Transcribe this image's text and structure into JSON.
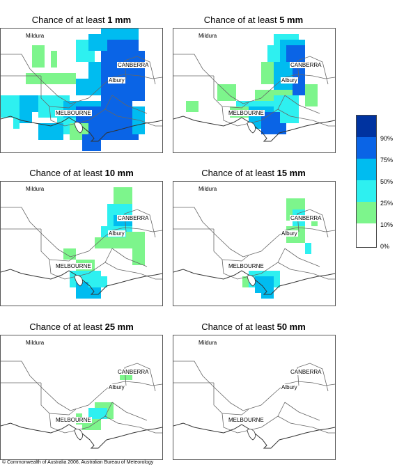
{
  "title_prefix": "Chance of at least",
  "panels": [
    {
      "threshold": "1 mm"
    },
    {
      "threshold": "5 mm"
    },
    {
      "threshold": "10 mm"
    },
    {
      "threshold": "15 mm"
    },
    {
      "threshold": "25 mm"
    },
    {
      "threshold": "50 mm"
    }
  ],
  "cities": {
    "mildura": "Mildura",
    "canberra": "CANBERRA",
    "albury": "Albury",
    "melbourne": "MELBOURNE"
  },
  "legend": {
    "labels": [
      "90%",
      "75%",
      "50%",
      "25%",
      "10%",
      "0%"
    ],
    "colors": [
      "#0033a0",
      "#0a64e6",
      "#00bcf0",
      "#2ef0f0",
      "#7df58c",
      "#ffffff"
    ]
  },
  "copyright": "© Commonwealth of Australia 2006, Australian Bureau of Meteorology"
}
